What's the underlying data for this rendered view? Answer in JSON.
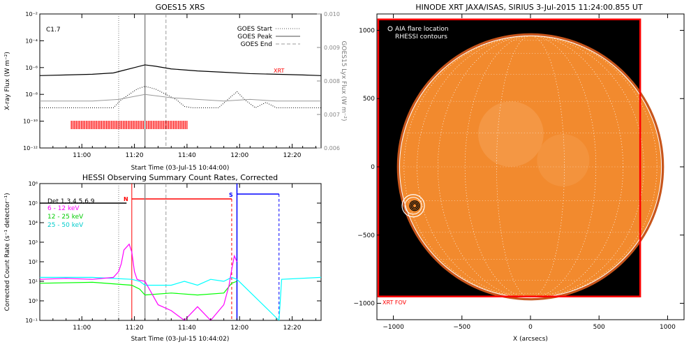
{
  "goes": {
    "title": "GOES15 XRS",
    "ylabel": "X-ray Flux (W m⁻²)",
    "y2label": "GOES15 Lyx Flux (W m⁻²)",
    "xlabel": "Start Time (03-Jul-15 10:44:00)",
    "class_label": "C1.7",
    "xrt_label": "XRT",
    "legend": [
      "GOES Start",
      "GOES Peak",
      "GOES End"
    ]
  },
  "hessi": {
    "title": "HESSI Observing Summary Count Rates, Corrected",
    "ylabel": "Corrected Count Rate (s⁻¹ detector⁻¹)",
    "xlabel": "Start Time (03-Jul-15 10:44:02)",
    "det_label": "Det 1,3,4,5,6,9",
    "n_label": "N",
    "s_label": "S"
  },
  "xrt": {
    "title": "HINODE XRT JAXA/ISAS, SIRIUS  3-Jul-2015 11:24:00.855 UT",
    "legend_line1": "AIA flare location",
    "legend_line2": "RHESSI contours",
    "fov_label": "XRT FOV",
    "xlabel": "X (arcsecs)"
  },
  "colors": {
    "goes_long": "#000000",
    "goes_short": "#000000",
    "goes_lya": "#999999",
    "xrt_bar": "#ff0000",
    "band_6_12": "#ff00ff",
    "band_12_25": "#00ff00",
    "band_25_50": "#00ffff",
    "band_det": "#000000",
    "night": "#ff0000",
    "saa": "#0000ff",
    "sun": "#f28a2e",
    "fov": "#ff0000"
  },
  "chart_data": [
    {
      "type": "line",
      "panel": "goes",
      "x_ticks": [
        "11:00",
        "11:20",
        "11:40",
        "12:00",
        "12:20"
      ],
      "x_tick_minutes": [
        16,
        36,
        56,
        76,
        96
      ],
      "xlim_minutes": [
        0,
        107
      ],
      "ylim_log": [
        -12,
        -2
      ],
      "y_tick_labels": [
        "10⁻¹²",
        "10⁻¹⁰",
        "10⁻⁸",
        "10⁻⁶",
        "10⁻⁴",
        "10⁻²"
      ],
      "y2lim": [
        0.006,
        0.01
      ],
      "y2_tick_labels": [
        "0.006",
        "0.007",
        "0.008",
        "0.009",
        "0.010"
      ],
      "markers": {
        "start_min": 30,
        "peak_min": 40,
        "end_min": 48
      },
      "xrt_bar_min": [
        12,
        56
      ],
      "series": [
        {
          "name": "",
          "style": "solid",
          "x_min": [
            0,
            10,
            20,
            28,
            32,
            36,
            40,
            44,
            50,
            60,
            70,
            80,
            90,
            100,
            107
          ],
          "log_flux": [
            -6.6,
            -6.55,
            -6.5,
            -6.4,
            -6.2,
            -6.0,
            -5.8,
            -5.9,
            -6.1,
            -6.25,
            -6.35,
            -6.45,
            -6.5,
            -6.55,
            -6.6
          ]
        },
        {
          "name": "",
          "style": "dotted",
          "x_min": [
            0,
            28,
            31,
            34,
            37,
            40,
            44,
            48,
            52,
            55,
            58,
            62,
            68,
            72,
            75,
            78,
            82,
            86,
            90,
            107
          ],
          "log_flux": [
            -9.0,
            -9.0,
            -8.4,
            -8.0,
            -7.6,
            -7.4,
            -7.6,
            -8.0,
            -8.4,
            -8.9,
            -9.0,
            -9.0,
            -9.0,
            -8.3,
            -7.8,
            -8.4,
            -9.0,
            -8.6,
            -9.0,
            -9.0
          ]
        },
        {
          "name": "",
          "style": "solid-grey",
          "x_min": [
            0,
            20,
            30,
            40,
            50,
            60,
            70,
            80,
            90,
            107
          ],
          "lya": [
            0.0074,
            0.0074,
            0.00745,
            0.0076,
            0.0075,
            0.00745,
            0.0074,
            0.00745,
            0.0074,
            0.0074
          ]
        }
      ]
    },
    {
      "type": "line",
      "panel": "hessi",
      "x_ticks": [
        "11:00",
        "11:20",
        "11:40",
        "12:00",
        "12:20"
      ],
      "x_tick_minutes": [
        16,
        36,
        56,
        76,
        96
      ],
      "xlim_minutes": [
        0,
        107
      ],
      "ylim_log": [
        -1,
        6
      ],
      "y_tick_labels": [
        "10⁻¹",
        "10⁰",
        "10¹",
        "10²",
        "10³",
        "10⁴",
        "10⁵",
        "10⁶"
      ],
      "markers": {
        "start_min": 30,
        "peak_min": 40,
        "end_min": 48
      },
      "night_min": [
        35,
        73
      ],
      "saa_min": [
        75,
        91
      ],
      "series": [
        {
          "name": "Det 1,3,4,5,6,9",
          "x_min": [
            0,
            30,
            33
          ],
          "log_rate": [
            5.0,
            5.0,
            5.0
          ]
        },
        {
          "name": "6 - 12 keV",
          "x_min": [
            0,
            10,
            20,
            28,
            30,
            31,
            32,
            34,
            35,
            36,
            37,
            38,
            40,
            45,
            50,
            55,
            60,
            65,
            70,
            72,
            73,
            74,
            75
          ],
          "log_rate": [
            1.1,
            1.15,
            1.1,
            1.2,
            1.5,
            1.9,
            2.6,
            2.9,
            2.5,
            1.5,
            1.1,
            1.05,
            1.0,
            -0.2,
            -0.5,
            -1,
            -0.3,
            -1,
            -0.2,
            0.8,
            1.6,
            2.3,
            2.0
          ]
        },
        {
          "name": "12 - 25 keV",
          "x_min": [
            0,
            20,
            35,
            38,
            40,
            50,
            60,
            70,
            73,
            75
          ],
          "log_rate": [
            0.9,
            0.95,
            0.8,
            0.6,
            0.3,
            0.4,
            0.3,
            0.4,
            0.9,
            1.0
          ]
        },
        {
          "name": "25 - 50 keV",
          "x_min": [
            0,
            20,
            35,
            38,
            40,
            50,
            55,
            60,
            65,
            70,
            73,
            75,
            91,
            92,
            107
          ],
          "log_rate": [
            1.2,
            1.2,
            1.1,
            1.0,
            0.8,
            0.8,
            1.0,
            0.8,
            1.1,
            1.0,
            1.2,
            1.1,
            -1,
            1.1,
            1.2
          ]
        }
      ]
    },
    {
      "type": "scatter",
      "panel": "xrt",
      "xlim": [
        -1120,
        1120
      ],
      "ylim": [
        -1120,
        1120
      ],
      "x_ticks": [
        -1000,
        -500,
        0,
        500,
        1000
      ],
      "y_ticks": [
        -1000,
        -500,
        0,
        500,
        1000
      ],
      "sun_radius_arcsec": 955,
      "fov_x": [
        -1110,
        800
      ],
      "fov_y": [
        -950,
        1080
      ],
      "flare_location": {
        "x": -855,
        "y": -285
      }
    }
  ]
}
